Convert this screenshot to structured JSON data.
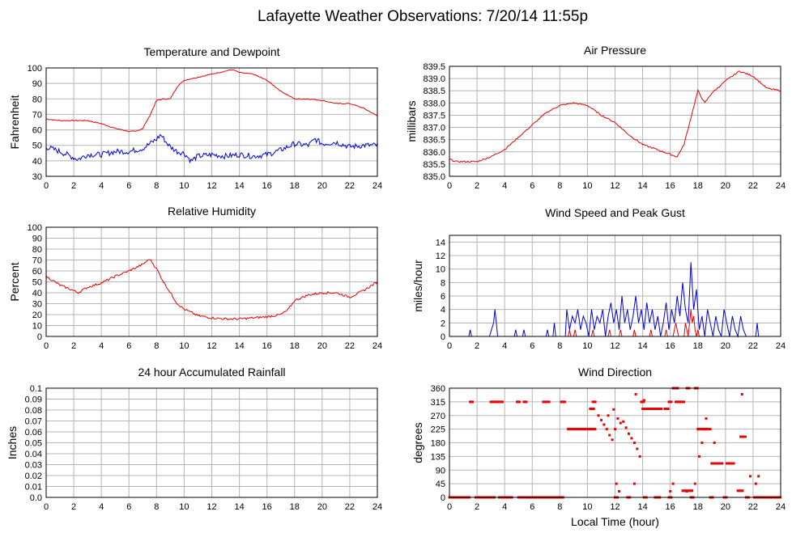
{
  "page": {
    "title": "Lafayette Weather Observations: 7/20/14 11:55p"
  },
  "chart_data": [
    {
      "id": "temp",
      "type": "line",
      "title": "Temperature and Dewpoint",
      "xlabel": "",
      "ylabel": "Fahrenheit",
      "xlim": [
        0,
        24
      ],
      "ylim": [
        30,
        100
      ],
      "xticks": [
        0,
        2,
        4,
        6,
        8,
        10,
        12,
        14,
        16,
        18,
        20,
        22,
        24
      ],
      "yticks": [
        30,
        40,
        50,
        60,
        70,
        80,
        90,
        100
      ],
      "grid": true,
      "series": [
        {
          "color": "#ee0000",
          "noise": 0.3,
          "x": [
            0,
            1,
            2,
            3,
            4,
            5,
            6,
            6.5,
            7,
            7.5,
            8,
            8.5,
            9,
            9.5,
            10,
            11,
            12,
            13,
            13.5,
            14,
            15,
            16,
            17,
            18,
            19,
            20,
            21,
            22,
            23,
            24
          ],
          "y": [
            67,
            66,
            66,
            66,
            64,
            61,
            59,
            59,
            61,
            69,
            79,
            80,
            80,
            88,
            92,
            94,
            96,
            98,
            99,
            97,
            96,
            92,
            85,
            80,
            80,
            79,
            77,
            77,
            74,
            69
          ]
        },
        {
          "color": "#0000dd",
          "noise": 1.8,
          "x": [
            0,
            1,
            2,
            2.3,
            3,
            4,
            5,
            6,
            7,
            8,
            8.3,
            8.7,
            9,
            9.5,
            10,
            10.5,
            11,
            12,
            13,
            14,
            15,
            16,
            17,
            18,
            19,
            19.5,
            20,
            21,
            22,
            23,
            24
          ],
          "y": [
            49,
            46,
            42,
            41,
            44,
            44,
            46,
            46,
            48,
            54,
            57,
            52,
            49,
            46,
            45,
            40,
            43,
            44,
            43,
            44,
            43,
            44,
            47,
            51,
            50,
            54,
            51,
            52,
            49,
            50,
            50
          ]
        }
      ]
    },
    {
      "id": "pressure",
      "type": "line",
      "title": "Air Pressure",
      "xlabel": "",
      "ylabel": "millibars",
      "xlim": [
        0,
        24
      ],
      "ylim": [
        835.0,
        839.5
      ],
      "xticks": [
        0,
        2,
        4,
        6,
        8,
        10,
        12,
        14,
        16,
        18,
        20,
        22,
        24
      ],
      "yticks": [
        835.0,
        835.5,
        836.0,
        836.5,
        837.0,
        837.5,
        838.0,
        838.5,
        839.0,
        839.5
      ],
      "ytick_labels": [
        "835.0",
        "835.5",
        "836.0",
        "836.5",
        "837.0",
        "837.5",
        "838.0",
        "838.5",
        "839.0",
        "839.5"
      ],
      "grid": true,
      "series": [
        {
          "color": "#ee0000",
          "noise": 0.03,
          "x": [
            0,
            0.5,
            1,
            2,
            3,
            4,
            5,
            6,
            7,
            8,
            9,
            10,
            11,
            12,
            13,
            14,
            15,
            16,
            16.5,
            17,
            17.5,
            18,
            18.5,
            19,
            20,
            21,
            22,
            23,
            24
          ],
          "y": [
            835.7,
            835.6,
            835.6,
            835.6,
            835.8,
            836.1,
            836.6,
            837.1,
            837.6,
            837.9,
            838.0,
            837.9,
            837.5,
            837.2,
            836.7,
            836.3,
            836.1,
            835.9,
            835.8,
            836.3,
            837.4,
            838.5,
            838.0,
            838.4,
            838.9,
            839.3,
            839.1,
            838.6,
            838.5
          ]
        }
      ]
    },
    {
      "id": "humidity",
      "type": "line",
      "title": "Relative Humidity",
      "xlabel": "",
      "ylabel": "Percent",
      "xlim": [
        0,
        24
      ],
      "ylim": [
        0,
        100
      ],
      "xticks": [
        0,
        2,
        4,
        6,
        8,
        10,
        12,
        14,
        16,
        18,
        20,
        22,
        24
      ],
      "yticks": [
        0,
        10,
        20,
        30,
        40,
        50,
        60,
        70,
        80,
        90,
        100
      ],
      "grid": true,
      "series": [
        {
          "color": "#ee0000",
          "noise": 1.0,
          "x": [
            0,
            1,
            2,
            2.3,
            3,
            4,
            5,
            6,
            7,
            7.5,
            8,
            8.5,
            9,
            9.5,
            10,
            11,
            12,
            13,
            14,
            15,
            16,
            17,
            17.5,
            18,
            19,
            20,
            21,
            22,
            23,
            24
          ],
          "y": [
            55,
            47,
            42,
            40,
            45,
            49,
            55,
            60,
            66,
            71,
            62,
            50,
            40,
            30,
            25,
            19,
            17,
            16,
            16,
            17,
            18,
            20,
            24,
            33,
            38,
            40,
            40,
            36,
            42,
            50
          ]
        }
      ]
    },
    {
      "id": "wind",
      "type": "line",
      "title": "Wind Speed and Peak Gust",
      "xlabel": "",
      "ylabel": "miles/hour",
      "xlim": [
        0,
        24
      ],
      "ylim": [
        0,
        15
      ],
      "xticks": [
        0,
        2,
        4,
        6,
        8,
        10,
        12,
        14,
        16,
        18,
        20,
        22,
        24
      ],
      "yticks": [
        0,
        2,
        4,
        6,
        8,
        10,
        12,
        14
      ],
      "grid": true,
      "series": [
        {
          "color": "#0000dd",
          "x": [
            0,
            1.4,
            1.5,
            1.6,
            2.9,
            3.2,
            3.3,
            3.5,
            4.7,
            4.8,
            4.9,
            5.3,
            5.4,
            5.5,
            7.0,
            7.1,
            7.2,
            7.5,
            7.6,
            7.7,
            8.4,
            8.5,
            8.7,
            8.9,
            9.1,
            9.3,
            9.5,
            9.7,
            9.9,
            10.1,
            10.3,
            10.5,
            10.7,
            10.9,
            11.1,
            11.3,
            11.5,
            11.7,
            11.9,
            12.1,
            12.3,
            12.5,
            12.7,
            12.9,
            13.1,
            13.3,
            13.5,
            13.7,
            13.9,
            14.1,
            14.3,
            14.5,
            14.7,
            14.9,
            15.1,
            15.3,
            15.5,
            15.7,
            15.9,
            16.1,
            16.3,
            16.5,
            16.7,
            16.9,
            17.1,
            17.3,
            17.5,
            17.7,
            17.9,
            18.1,
            18.3,
            18.5,
            18.7,
            18.9,
            19.1,
            19.3,
            19.5,
            19.7,
            19.9,
            20.1,
            20.3,
            20.5,
            20.7,
            20.9,
            21.1,
            21.3,
            21.5,
            22.2,
            22.3,
            22.4,
            24
          ],
          "y": [
            0,
            0,
            1,
            0,
            0,
            2,
            4,
            0,
            0,
            1,
            0,
            0,
            1,
            0,
            0,
            1,
            0,
            0,
            2,
            0,
            0,
            4,
            1,
            3,
            2,
            4,
            1,
            3,
            2,
            0,
            4,
            1,
            3,
            2,
            4,
            0,
            3,
            5,
            2,
            4,
            1,
            6,
            2,
            4,
            1,
            3,
            6,
            2,
            4,
            1,
            5,
            2,
            4,
            1,
            3,
            0,
            2,
            5,
            1,
            4,
            2,
            6,
            3,
            8,
            4,
            2,
            11,
            4,
            7,
            1,
            3,
            0,
            4,
            2,
            0,
            3,
            1,
            0,
            4,
            2,
            0,
            3,
            1,
            0,
            3,
            1,
            0,
            0,
            2,
            0,
            0
          ]
        },
        {
          "color": "#ee0000",
          "x": [
            0,
            8.6,
            8.7,
            8.8,
            9.0,
            9.1,
            9.2,
            10.3,
            10.4,
            10.5,
            11.5,
            11.6,
            11.7,
            12.3,
            12.4,
            12.5,
            13.3,
            13.4,
            13.5,
            14.5,
            14.6,
            14.7,
            15.6,
            15.7,
            15.8,
            16.2,
            16.3,
            16.4,
            16.5,
            16.6,
            17.0,
            17.1,
            17.2,
            17.3,
            17.4,
            17.5,
            17.6,
            17.7,
            17.8,
            17.9,
            18.0,
            18.1,
            24
          ],
          "y": [
            0,
            0,
            1,
            0,
            0,
            1,
            0,
            0,
            1,
            0,
            0,
            1,
            0,
            0,
            1,
            0,
            0,
            1,
            0,
            0,
            1,
            0,
            0,
            1,
            0,
            0,
            1,
            2,
            1,
            0,
            0,
            2,
            1,
            0,
            2,
            4,
            2,
            3,
            1,
            0,
            1,
            0,
            0
          ]
        }
      ]
    },
    {
      "id": "rain",
      "type": "line",
      "title": "24 hour Accumulated Rainfall",
      "xlabel": "",
      "ylabel": "Inches",
      "xlim": [
        0,
        24
      ],
      "ylim": [
        0,
        0.1
      ],
      "xticks": [
        0,
        2,
        4,
        6,
        8,
        10,
        12,
        14,
        16,
        18,
        20,
        22,
        24
      ],
      "yticks": [
        0,
        0.01,
        0.02,
        0.03,
        0.04,
        0.05,
        0.06,
        0.07,
        0.08,
        0.09,
        0.1
      ],
      "ytick_labels": [
        "0.0",
        "0.01",
        "0.02",
        "0.03",
        "0.04",
        "0.05",
        "0.06",
        "0.07",
        "0.08",
        "0.09",
        "0.1"
      ],
      "grid": true,
      "series": [
        {
          "color": "#ee0000",
          "x": [
            0,
            24
          ],
          "y": [
            0,
            0
          ]
        }
      ]
    },
    {
      "id": "direction",
      "type": "scatter",
      "title": "Wind Direction",
      "xlabel": "Local Time (hour)",
      "ylabel": "degrees",
      "xlim": [
        0,
        24
      ],
      "ylim": [
        0,
        360
      ],
      "xticks": [
        0,
        2,
        4,
        6,
        8,
        10,
        12,
        14,
        16,
        18,
        20,
        22,
        24
      ],
      "yticks": [
        0,
        45,
        90,
        135,
        180,
        225,
        270,
        315,
        360
      ],
      "grid": true,
      "series": [
        {
          "color": "#ee0000",
          "segments": [
            {
              "y": 0,
              "ranges": [
                [
                  0,
                  1.5
                ],
                [
                  1.9,
                  3.3
                ],
                [
                  3.6,
                  4.6
                ],
                [
                  5.0,
                  8.3
                ],
                [
                  12.0,
                  12.2
                ],
                [
                  12.9,
                  13.1
                ],
                [
                  14.1,
                  14.3
                ],
                [
                  14.9,
                  15.3
                ],
                [
                  15.9,
                  16.1
                ],
                [
                  17.5,
                  17.7
                ],
                [
                  18.9,
                  19.1
                ],
                [
                  19.9,
                  20.1
                ],
                [
                  21.5,
                  21.7
                ],
                [
                  22.1,
                  24
                ]
              ]
            },
            {
              "y": 315,
              "ranges": [
                [
                  1.5,
                  1.7
                ],
                [
                  3.0,
                  3.9
                ],
                [
                  4.9,
                  5.1
                ],
                [
                  5.4,
                  5.6
                ],
                [
                  6.8,
                  7.3
                ],
                [
                  8.1,
                  8.4
                ],
                [
                  10.4,
                  10.6
                ],
                [
                  13.9,
                  14.1
                ],
                [
                  15.9,
                  16.1
                ],
                [
                  16.4,
                  17.0
                ]
              ]
            },
            {
              "y": 292,
              "ranges": [
                [
                  10.2,
                  10.5
                ],
                [
                  14.0,
                  15.4
                ],
                [
                  15.6,
                  15.9
                ]
              ]
            },
            {
              "y": 225,
              "ranges": [
                [
                  8.6,
                  10.6
                ],
                [
                  18.0,
                  18.8
                ]
              ]
            },
            {
              "y": 112,
              "ranges": [
                [
                  19.0,
                  19.8
                ],
                [
                  20.1,
                  20.6
                ]
              ]
            },
            {
              "y": 22,
              "ranges": [
                [
                  16.9,
                  17.6
                ],
                [
                  20.9,
                  21.3
                ]
              ]
            },
            {
              "y": 360,
              "ranges": [
                [
                  16.2,
                  16.6
                ],
                [
                  17.2,
                  17.4
                ],
                [
                  17.8,
                  18.0
                ]
              ]
            },
            {
              "y": 200,
              "ranges": [
                [
                  21.1,
                  21.5
                ]
              ]
            }
          ],
          "points": [
            [
              10.8,
              270
            ],
            [
              11.0,
              255
            ],
            [
              11.2,
              240
            ],
            [
              11.4,
              225
            ],
            [
              11.6,
              205
            ],
            [
              11.8,
              190
            ],
            [
              12.0,
              225
            ],
            [
              12.2,
              260
            ],
            [
              12.4,
              245
            ],
            [
              12.6,
              250
            ],
            [
              12.8,
              230
            ],
            [
              13.0,
              210
            ],
            [
              13.2,
              195
            ],
            [
              13.4,
              180
            ],
            [
              13.6,
              160
            ],
            [
              13.8,
              135
            ],
            [
              11.5,
              270
            ],
            [
              11.9,
              290
            ],
            [
              12.1,
              45
            ],
            [
              12.3,
              20
            ],
            [
              13.4,
              45
            ],
            [
              13.5,
              340
            ],
            [
              14.1,
              320
            ],
            [
              16.0,
              20
            ],
            [
              16.2,
              45
            ],
            [
              17.2,
              20
            ],
            [
              17.8,
              45
            ],
            [
              18.1,
              135
            ],
            [
              18.3,
              180
            ],
            [
              18.5,
              225
            ],
            [
              18.6,
              260
            ],
            [
              18.9,
              225
            ],
            [
              19.2,
              180
            ],
            [
              20.6,
              112
            ],
            [
              21.2,
              340
            ],
            [
              21.8,
              70
            ],
            [
              22.2,
              45
            ],
            [
              22.4,
              70
            ]
          ]
        }
      ]
    }
  ]
}
